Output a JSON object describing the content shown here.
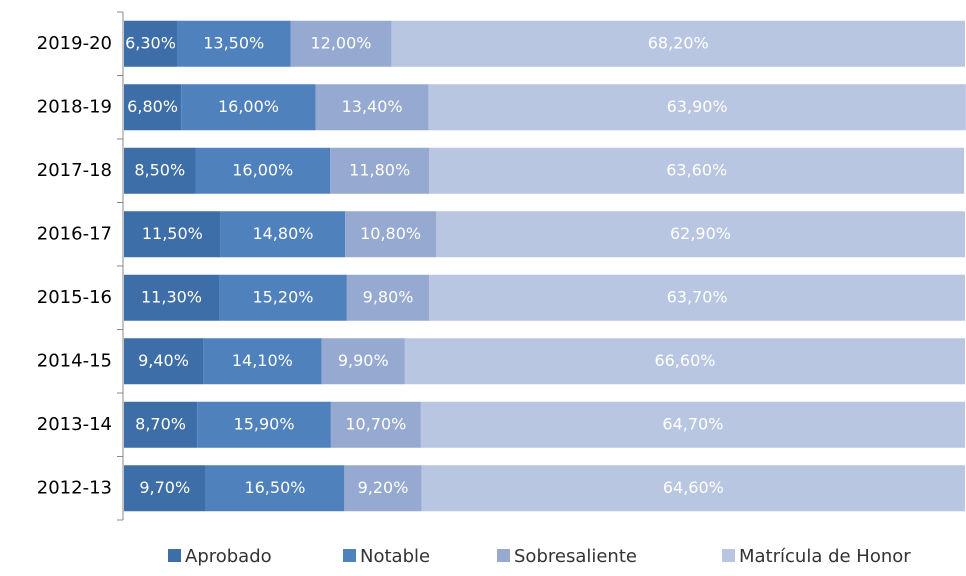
{
  "chart_data": {
    "type": "stacked_barh",
    "categories": [
      "2019-20",
      "2018-19",
      "2017-18",
      "2016-17",
      "2015-16",
      "2014-15",
      "2013-14",
      "2012-13"
    ],
    "xlim": [
      0,
      100
    ],
    "legend": "bottom",
    "series": [
      {
        "name": "Aprobado",
        "color": "#3e6ea8",
        "values": [
          6.3,
          6.8,
          8.5,
          11.5,
          11.3,
          9.4,
          8.7,
          9.7
        ],
        "value_labels": [
          "6,30%",
          "6,80%",
          "8,50%",
          "11,50%",
          "11,30%",
          "9,40%",
          "8,70%",
          "9,70%"
        ]
      },
      {
        "name": "Notable",
        "color": "#4f81bd",
        "values": [
          13.5,
          16,
          16,
          14.8,
          15.2,
          14.1,
          15.9,
          16.5
        ],
        "value_labels": [
          "13,50%",
          "16,00%",
          "16,00%",
          "14,80%",
          "15,20%",
          "14,10%",
          "15,90%",
          "16,50%"
        ]
      },
      {
        "name": "Sobresaliente",
        "color": "#95a9d1",
        "values": [
          12,
          13.4,
          11.8,
          10.8,
          9.8,
          9.9,
          10.7,
          9.2
        ],
        "value_labels": [
          "12,00%",
          "13,40%",
          "11,80%",
          "10,80%",
          "9,80%",
          "9,90%",
          "10,70%",
          "9,20%"
        ]
      },
      {
        "name": "Matrícula de Honor",
        "color": "#b9c6e1",
        "values": [
          68.2,
          63.9,
          63.6,
          62.9,
          63.7,
          66.6,
          64.7,
          64.6
        ],
        "value_labels": [
          "68,20%",
          "63,90%",
          "63,60%",
          "62,90%",
          "63,70%",
          "66,60%",
          "64,70%",
          "64,60%"
        ]
      }
    ]
  }
}
